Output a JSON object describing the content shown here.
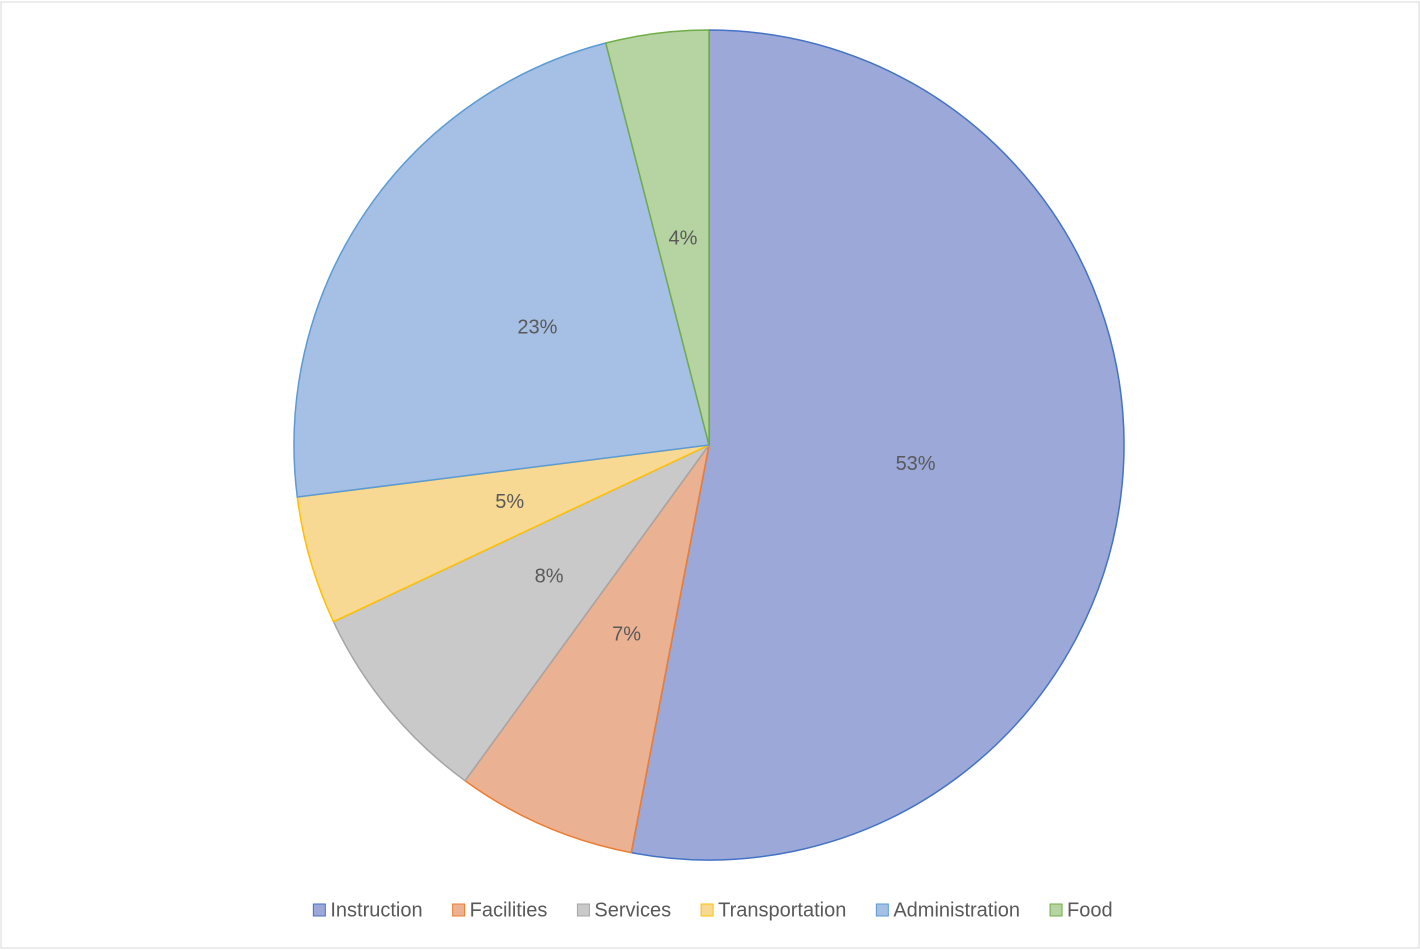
{
  "chart_data": {
    "type": "pie",
    "categories": [
      "Instruction",
      "Facilities",
      "Services",
      "Transportation",
      "Administration",
      "Food"
    ],
    "values": [
      53,
      7,
      8,
      5,
      23,
      4
    ],
    "value_labels": [
      "53%",
      "7%",
      "8%",
      "5%",
      "23%",
      "4%"
    ],
    "colors": [
      "#9ba8d8",
      "#ebb193",
      "#c9c9c9",
      "#f8d993",
      "#a6bfe4",
      "#b6d4a2"
    ],
    "edge_colors": [
      "#4472c4",
      "#ed7d31",
      "#a5a5a5",
      "#ffc000",
      "#5b9bd5",
      "#70ad47"
    ],
    "legend": "bottom"
  }
}
